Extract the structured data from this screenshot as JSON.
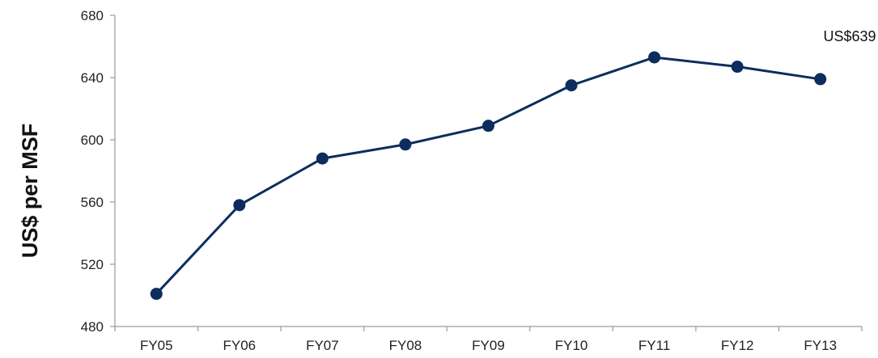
{
  "chart_data": {
    "type": "line",
    "categories": [
      "FY05",
      "FY06",
      "FY07",
      "FY08",
      "FY09",
      "FY10",
      "FY11",
      "FY12",
      "FY13"
    ],
    "series": [
      {
        "values": [
          501,
          558,
          588,
          597,
          609,
          635,
          653,
          647,
          639
        ]
      }
    ],
    "xlabel": "",
    "ylabel": "US$ per MSF",
    "ylim": [
      480,
      680
    ],
    "yticks": [
      480,
      520,
      560,
      600,
      640,
      680
    ],
    "annotation": "US$639",
    "grid": false,
    "legend": "none",
    "colors": {
      "series": "#0d2d5e",
      "axis": "#9a9a9a",
      "text": "#222222"
    }
  }
}
